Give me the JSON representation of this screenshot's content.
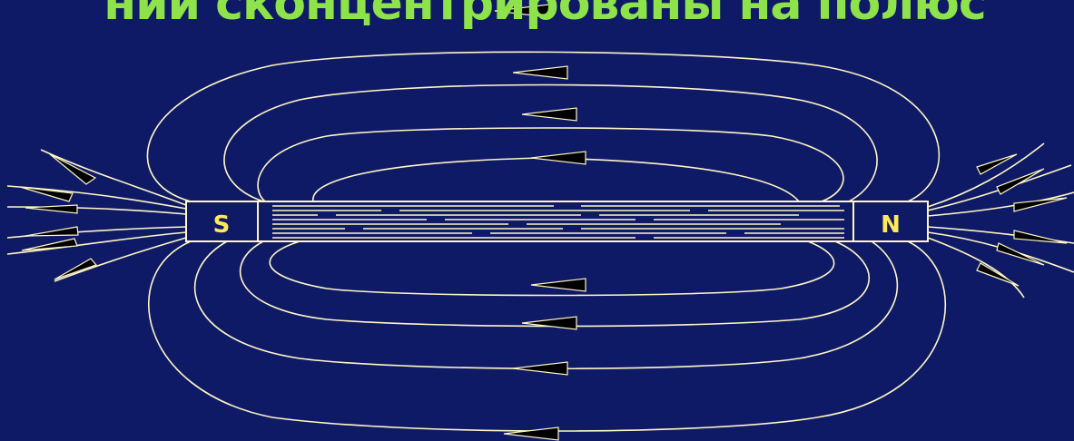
{
  "title": "нии сконцентрированы на полюс",
  "magnet": {
    "south_label": "S",
    "north_label": "N"
  },
  "colors": {
    "background": "#0f1a66",
    "title": "#8fe34a",
    "field_lines": "#fff7c6",
    "pole_labels": "#ffe85a",
    "arrows": "#000000"
  }
}
